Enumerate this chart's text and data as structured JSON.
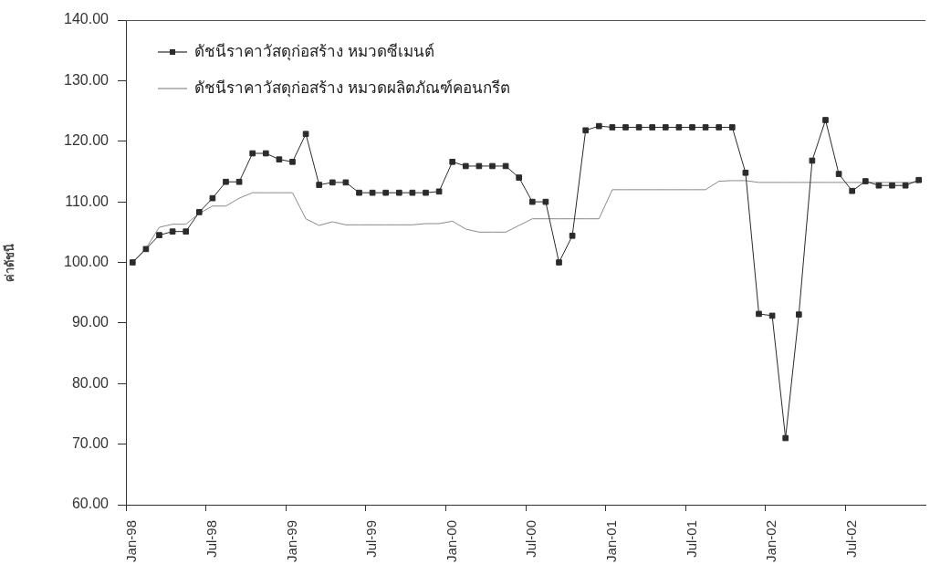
{
  "chart_data": {
    "type": "line",
    "ylabel": "ค่าดัชนี",
    "categories": [
      "Jan-98",
      null,
      null,
      null,
      null,
      null,
      "Jul-98",
      null,
      null,
      null,
      null,
      null,
      "Jan-99",
      null,
      null,
      null,
      null,
      null,
      "Jul-99",
      null,
      null,
      null,
      null,
      null,
      "Jan-00",
      null,
      null,
      null,
      null,
      null,
      "Jul-00",
      null,
      null,
      null,
      null,
      null,
      "Jan-01",
      null,
      null,
      null,
      null,
      null,
      "Jul-01",
      null,
      null,
      null,
      null,
      null,
      "Jan-02",
      null,
      null,
      null,
      null,
      null,
      "Jul-02",
      null,
      null,
      null,
      null,
      null
    ],
    "series": [
      {
        "name": "ดัชนีราคาวัสดุก่อสร้าง หมวดซีเมนต์",
        "color": "#2b2b2b",
        "marker": "square",
        "values": [
          100,
          102.2,
          104.5,
          105.1,
          105.1,
          108.3,
          110.6,
          113.3,
          113.3,
          118.0,
          118.0,
          117.0,
          116.6,
          121.2,
          112.8,
          113.2,
          113.2,
          111.5,
          111.5,
          111.5,
          111.5,
          111.5,
          111.5,
          111.7,
          116.6,
          115.9,
          115.9,
          115.9,
          115.9,
          114.0,
          110.0,
          110.0,
          100.0,
          104.4,
          121.8,
          122.5,
          122.3,
          122.3,
          122.3,
          122.3,
          122.3,
          122.3,
          122.3,
          122.3,
          122.3,
          122.3,
          114.8,
          91.5,
          91.2,
          71.0,
          91.4,
          116.8,
          123.5,
          114.6,
          111.8,
          113.4,
          112.7,
          112.7,
          112.7,
          113.6
        ]
      },
      {
        "name": "ดัชนีราคาวัสดุก่อสร้าง หมวดผลิตภัณฑ์คอนกรีต",
        "color": "#8a8a8a",
        "marker": "none",
        "values": [
          100,
          102.3,
          105.8,
          106.3,
          106.3,
          108.1,
          109.3,
          109.3,
          110.6,
          111.5,
          111.5,
          111.5,
          111.5,
          107.2,
          106.1,
          106.7,
          106.2,
          106.2,
          106.2,
          106.2,
          106.2,
          106.2,
          106.4,
          106.4,
          106.8,
          105.5,
          105.0,
          105.0,
          105.0,
          106.1,
          107.2,
          107.2,
          107.2,
          107.2,
          107.2,
          107.2,
          112.0,
          112.0,
          112.0,
          112.0,
          112.0,
          112.0,
          112.0,
          112.0,
          113.4,
          113.5,
          113.5,
          113.2,
          113.2,
          113.2,
          113.2,
          113.2,
          113.2,
          113.2,
          113.2,
          113.2,
          113.2,
          113.2,
          113.2,
          113.2
        ]
      }
    ],
    "ylim": [
      60,
      140
    ],
    "yticks": [
      {
        "value": 60,
        "label": "60.00"
      },
      {
        "value": 70,
        "label": "70.00"
      },
      {
        "value": 80,
        "label": "80.00"
      },
      {
        "value": 90,
        "label": "90.00"
      },
      {
        "value": 100,
        "label": "100.00"
      },
      {
        "value": 110,
        "label": "110.00"
      },
      {
        "value": 120,
        "label": "120.00"
      },
      {
        "value": 130,
        "label": "130.00"
      },
      {
        "value": 140,
        "label": "140.00"
      }
    ],
    "legend": "top left"
  }
}
